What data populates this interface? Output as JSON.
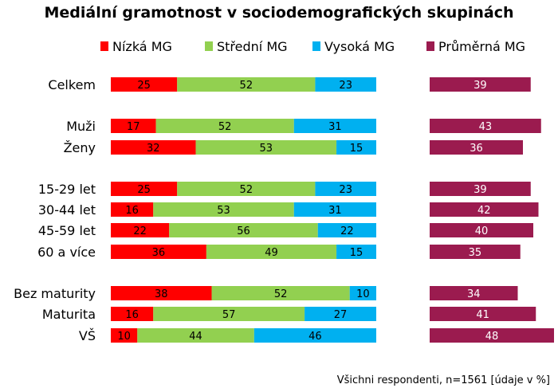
{
  "chart_data": {
    "type": "bar",
    "stacked": true,
    "title": "Mediální gramotnost v sociodemografických skupinách",
    "footnote": "Všichni respondenti, n=1561 [údaje v %]",
    "legend_position": "top",
    "grid": false,
    "categories": [
      "Celkem",
      "Muži",
      "Ženy",
      "15-29 let",
      "30-44 let",
      "45-59 let",
      "60 a více",
      "Bez maturity",
      "Maturita",
      "VŠ"
    ],
    "groups": [
      [
        0
      ],
      [
        1,
        2
      ],
      [
        3,
        4,
        5,
        6
      ],
      [
        7,
        8,
        9
      ]
    ],
    "series": [
      {
        "name": "Nízká MG",
        "color": "#ff0000",
        "values": [
          25,
          17,
          32,
          25,
          16,
          22,
          36,
          38,
          16,
          10
        ]
      },
      {
        "name": "Střední MG",
        "color": "#92d050",
        "values": [
          52,
          52,
          53,
          52,
          53,
          56,
          49,
          52,
          57,
          44
        ]
      },
      {
        "name": "Vysoká MG",
        "color": "#00b0f0",
        "values": [
          23,
          31,
          15,
          23,
          31,
          22,
          15,
          10,
          27,
          46
        ]
      }
    ],
    "average": {
      "name": "Průměrná MG",
      "color": "#9b1b4f",
      "values": [
        39,
        43,
        36,
        39,
        42,
        40,
        35,
        34,
        41,
        48
      ]
    }
  }
}
